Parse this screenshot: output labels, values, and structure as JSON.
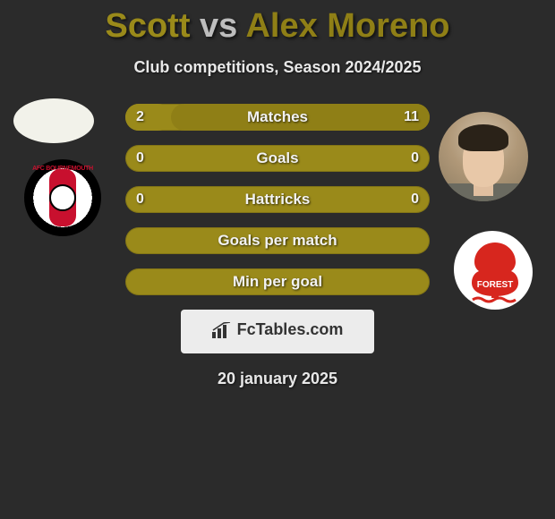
{
  "title": {
    "player1": "Scott",
    "vs": "vs",
    "player2": "Alex Moreno",
    "color_p1": "#9a8a1a",
    "color_vs": "#bdbdbd",
    "color_p2": "#8f7f16"
  },
  "subtitle": "Club competitions, Season 2024/2025",
  "date": "20 january 2025",
  "bar_colors": {
    "track": "#9a8a1a",
    "fill_p1": "#9a8a1a",
    "fill_p2": "#8f7f16"
  },
  "stats": [
    {
      "label": "Matches",
      "p1": "2",
      "p2": "11",
      "p1_pct": 15,
      "p2_pct": 85
    },
    {
      "label": "Goals",
      "p1": "0",
      "p2": "0",
      "p1_pct": 0,
      "p2_pct": 0
    },
    {
      "label": "Hattricks",
      "p1": "0",
      "p2": "0",
      "p1_pct": 0,
      "p2_pct": 0
    },
    {
      "label": "Goals per match",
      "p1": "",
      "p2": "",
      "p1_pct": 0,
      "p2_pct": 0
    },
    {
      "label": "Min per goal",
      "p1": "",
      "p2": "",
      "p1_pct": 0,
      "p2_pct": 0
    }
  ],
  "club1": {
    "name": "AFC Bournemouth",
    "label": "AFC BOURNEMOUTH"
  },
  "club2": {
    "name": "Nottingham Forest",
    "label": "FOREST"
  },
  "logo": {
    "text": "FcTables.com"
  }
}
